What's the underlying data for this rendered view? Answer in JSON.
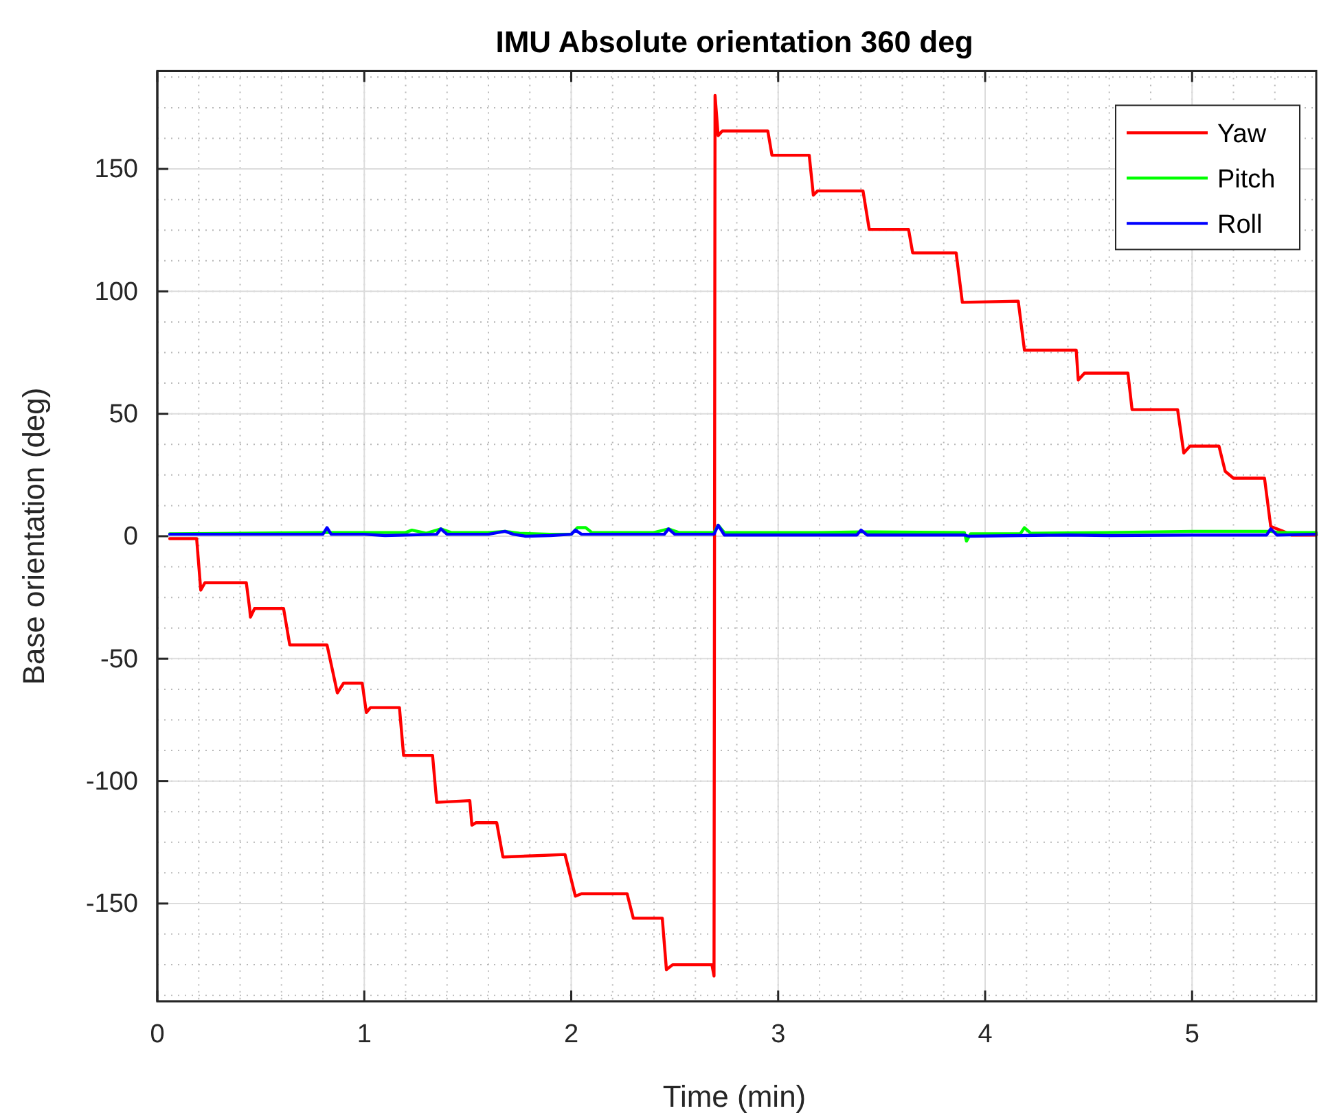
{
  "chart_data": {
    "type": "line",
    "title": "IMU Absolute orientation 360 deg",
    "xlabel": "Time (min)",
    "ylabel": "Base orientation (deg)",
    "xlim": [
      0,
      5.6
    ],
    "ylim": [
      -190,
      190
    ],
    "xticks": [
      0,
      1,
      2,
      3,
      4,
      5
    ],
    "yticks": [
      -150,
      -100,
      -50,
      0,
      50,
      100,
      150
    ],
    "grid": true,
    "legend": "top right",
    "line_style": "solid",
    "marker": "none",
    "series": [
      {
        "name": "Yaw",
        "color": "#ff0000",
        "x": [
          0.06,
          0.19,
          0.21,
          0.23,
          0.43,
          0.446,
          0.45,
          0.47,
          0.61,
          0.64,
          0.82,
          0.87,
          0.9,
          0.99,
          1.01,
          1.03,
          1.17,
          1.19,
          1.33,
          1.35,
          1.51,
          1.52,
          1.54,
          1.64,
          1.67,
          1.97,
          2.02,
          2.05,
          2.27,
          2.3,
          2.44,
          2.46,
          2.49,
          2.68,
          2.69,
          2.695,
          2.71,
          2.73,
          2.95,
          2.97,
          3.15,
          3.17,
          3.19,
          3.41,
          3.44,
          3.63,
          3.65,
          3.86,
          3.89,
          4.16,
          4.19,
          4.44,
          4.45,
          4.48,
          4.69,
          4.71,
          4.93,
          4.96,
          4.99,
          5.13,
          5.16,
          5.2,
          5.35,
          5.38,
          5.44,
          5.48,
          5.6
        ],
        "values": [
          -1,
          -1,
          -22,
          -19,
          -19,
          -29.5,
          -33,
          -29.5,
          -29.5,
          -44.4,
          -44.4,
          -64,
          -60,
          -60,
          -72,
          -70,
          -70,
          -89.5,
          -89.5,
          -108.7,
          -108,
          -118,
          -117,
          -117,
          -131,
          -130,
          -147,
          -146,
          -146,
          -156,
          -156,
          -177,
          -175,
          -175,
          -179.6,
          180,
          163.6,
          165.5,
          165.5,
          155.6,
          155.6,
          139.3,
          141,
          141,
          125.3,
          125.3,
          115.7,
          115.7,
          95.5,
          96,
          76,
          76,
          63.8,
          66.6,
          66.6,
          51.7,
          51.7,
          34,
          36.8,
          36.8,
          26.5,
          23.7,
          23.7,
          4,
          2,
          0.5,
          0.5
        ]
      },
      {
        "name": "Pitch",
        "color": "#00ff00",
        "x": [
          0.06,
          0.8,
          1.0,
          1.2,
          1.23,
          1.3,
          1.37,
          1.42,
          1.6,
          1.68,
          1.75,
          1.9,
          2.0,
          2.03,
          2.07,
          2.1,
          2.4,
          2.47,
          2.52,
          2.69,
          2.71,
          2.74,
          3.0,
          3.2,
          3.4,
          3.9,
          3.91,
          3.93,
          4.17,
          4.19,
          4.22,
          4.6,
          5.0,
          5.38,
          5.42,
          5.6
        ],
        "values": [
          1,
          1.5,
          1.5,
          1.5,
          2.5,
          1.2,
          3,
          1.5,
          1.5,
          2,
          1.2,
          0.8,
          0.8,
          3.5,
          3.5,
          1.5,
          1.5,
          3,
          1.5,
          1.5,
          4.5,
          1.5,
          1.5,
          1.5,
          1.8,
          1.5,
          -2,
          1,
          1,
          3.5,
          1.2,
          1.5,
          2,
          2,
          1.5,
          1.5
        ]
      },
      {
        "name": "Roll",
        "color": "#0000ff",
        "x": [
          0.06,
          0.5,
          0.8,
          0.82,
          0.84,
          1.0,
          1.1,
          1.35,
          1.37,
          1.4,
          1.6,
          1.68,
          1.72,
          1.78,
          1.9,
          2.0,
          2.02,
          2.05,
          2.4,
          2.45,
          2.47,
          2.5,
          2.69,
          2.71,
          2.74,
          3.0,
          3.38,
          3.4,
          3.43,
          3.9,
          3.92,
          4.4,
          4.6,
          5.0,
          5.36,
          5.38,
          5.41,
          5.6
        ],
        "values": [
          0.8,
          0.8,
          0.8,
          3.5,
          0.8,
          0.8,
          0.3,
          0.8,
          3,
          0.8,
          0.8,
          2,
          0.8,
          0,
          0.3,
          0.8,
          2.5,
          0.8,
          0.8,
          0.8,
          3,
          0.8,
          0.8,
          4.5,
          0.5,
          0.5,
          0.5,
          2.5,
          0.5,
          0.5,
          0,
          0.5,
          0.3,
          0.5,
          0.5,
          3,
          0.5,
          0.8
        ]
      }
    ]
  }
}
